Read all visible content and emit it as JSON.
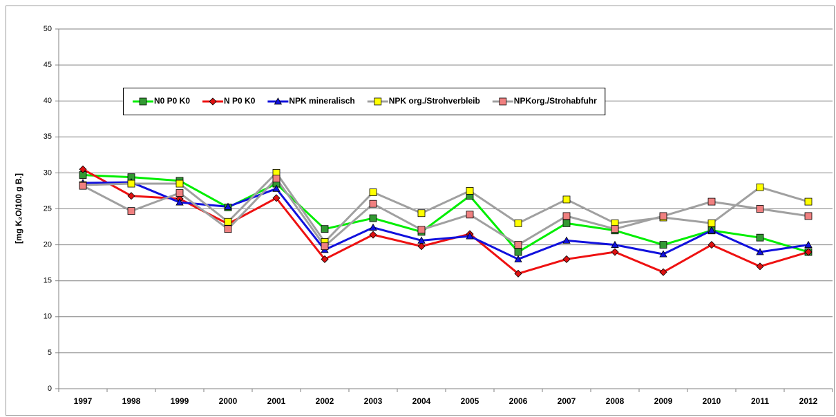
{
  "chart_data": {
    "type": "line",
    "y_label": "[mg K₂O/100 g B.]",
    "categories": [
      "1997",
      "1998",
      "1999",
      "2000",
      "2001",
      "2002",
      "2003",
      "2004",
      "2005",
      "2006",
      "2007",
      "2008",
      "2009",
      "2010",
      "2011",
      "2012"
    ],
    "ylim": [
      0,
      50
    ],
    "yticks": [
      0,
      5,
      10,
      15,
      20,
      25,
      30,
      35,
      40,
      45,
      50
    ],
    "grid": true,
    "series": [
      {
        "name": "N0 P0 K0",
        "color": "#00ee00",
        "marker": "square",
        "marker_color": "#339933",
        "values": [
          29.7,
          29.4,
          28.9,
          25.2,
          28.5,
          22.2,
          23.7,
          21.8,
          26.8,
          19,
          23,
          22,
          20,
          22,
          21,
          19
        ]
      },
      {
        "name": "N P0 K0",
        "color": "#ee1111",
        "marker": "diamond",
        "marker_color": "#dd1111",
        "values": [
          30.5,
          26.8,
          26.4,
          22.9,
          26.5,
          18,
          21.4,
          19.8,
          21.5,
          16,
          18,
          19,
          16.2,
          20,
          17,
          19
        ]
      },
      {
        "name": "NPK mineralisch",
        "color": "#1111dd",
        "marker": "triangle",
        "marker_color": "#1111dd",
        "values": [
          28.6,
          28.7,
          25.9,
          25.3,
          27.8,
          19.3,
          22.4,
          20.6,
          21.2,
          18,
          20.6,
          20,
          18.7,
          22,
          19,
          20
        ]
      },
      {
        "name": "NPK org./Strohverbleib",
        "color": "#a0a0a0",
        "marker": "square",
        "marker_color": "#ffff00",
        "values": [
          28.3,
          28.5,
          28.5,
          23.2,
          30,
          20.4,
          27.3,
          24.4,
          27.5,
          23,
          26.3,
          23,
          23.8,
          23,
          28,
          26
        ]
      },
      {
        "name": "NPKorg./Strohabfuhr",
        "color": "#a0a0a0",
        "marker": "square",
        "marker_color": "#f08080",
        "values": [
          28.2,
          24.7,
          27.2,
          22.2,
          29.2,
          19.8,
          25.7,
          22.1,
          24.2,
          20,
          24,
          22.2,
          24,
          26,
          25,
          24
        ]
      }
    ]
  }
}
